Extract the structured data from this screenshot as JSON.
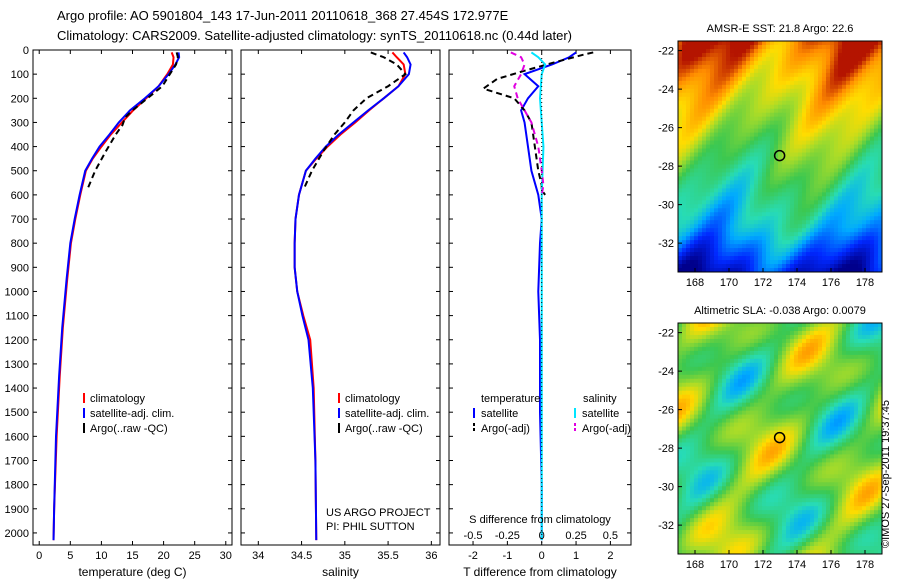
{
  "title_line1": "Argo profile: AO 5901804_143 17-Jun-2011 20110618_368 27.454S 172.977E",
  "title_line2": "Climatology: CARS2009. Satellite-adjusted climatology: synTS_20110618.nc (0.44d later)",
  "stamp": "©IMOS 27-Sep-2011 19:37:45",
  "colors": {
    "climatology": "#ff0000",
    "satellite": "#0000ff",
    "argo": "#000000",
    "satellite_salinity": "#00e5ff",
    "argo_salinity": "#e000e0"
  },
  "chart_data": [
    {
      "type": "line",
      "id": "temperature",
      "xlabel": "temperature (deg C)",
      "xlim": [
        -1,
        31
      ],
      "xticks": [
        0,
        5,
        10,
        15,
        20,
        25,
        30
      ],
      "ylim": [
        2050,
        0
      ],
      "yticks": [
        0,
        100,
        200,
        300,
        400,
        500,
        600,
        700,
        800,
        900,
        1000,
        1100,
        1200,
        1300,
        1400,
        1500,
        1600,
        1700,
        1800,
        1900,
        2000
      ],
      "legend": [
        "climatology",
        "satellite-adj. clim.",
        "Argo(..raw -QC)"
      ],
      "series": [
        {
          "name": "climatology",
          "color": "#ff0000",
          "x": [
            21.3,
            21.6,
            21.5,
            20.6,
            19.2,
            17.2,
            15.1,
            13.3,
            11.5,
            10.0,
            8.6,
            7.5,
            6.6,
            5.8,
            5.1,
            4.5,
            3.8,
            3.3,
            2.8,
            2.4,
            2.3
          ],
          "y": [
            10,
            30,
            60,
            100,
            150,
            200,
            250,
            300,
            350,
            400,
            450,
            500,
            600,
            700,
            800,
            950,
            1150,
            1350,
            1600,
            1900,
            2030
          ]
        },
        {
          "name": "satellite-adj. clim.",
          "color": "#0000ff",
          "x": [
            22.4,
            22.5,
            21.9,
            20.8,
            19.2,
            17.0,
            14.6,
            12.8,
            11.3,
            9.7,
            8.5,
            7.4,
            6.5,
            5.7,
            5.0,
            4.4,
            3.7,
            3.2,
            2.7,
            2.4,
            2.3
          ],
          "y": [
            10,
            30,
            60,
            100,
            150,
            200,
            250,
            300,
            350,
            400,
            450,
            500,
            600,
            700,
            800,
            950,
            1150,
            1350,
            1600,
            1900,
            2030
          ]
        },
        {
          "name": "Argo(..raw -QC)",
          "color": "#000000",
          "dashed": true,
          "x": [
            22.1,
            22.3,
            22.0,
            21.0,
            19.8,
            17.4,
            15.0,
            13.8,
            13.4,
            12.3,
            10.7,
            9.0,
            7.7
          ],
          "y": [
            10,
            30,
            60,
            100,
            150,
            200,
            250,
            280,
            310,
            350,
            420,
            500,
            580
          ]
        }
      ]
    },
    {
      "type": "line",
      "id": "salinity",
      "xlabel": "salinity",
      "xlim": [
        33.8,
        36.1
      ],
      "xticks": [
        34,
        34.5,
        35,
        35.5,
        36
      ],
      "ylim": [
        2050,
        0
      ],
      "legend": [
        "climatology",
        "satellite-adj. clim.",
        "Argo(..raw -QC)"
      ],
      "annotation": [
        "US ARGO PROJECT",
        "PI: PHIL SUTTON"
      ],
      "series": [
        {
          "name": "climatology",
          "color": "#ff0000",
          "x": [
            35.55,
            35.6,
            35.68,
            35.7,
            35.62,
            35.45,
            35.28,
            35.12,
            34.95,
            34.8,
            34.67,
            34.55,
            34.47,
            34.43,
            34.42,
            34.42,
            34.45,
            34.52,
            34.6,
            34.64,
            34.66,
            34.67
          ],
          "y": [
            10,
            30,
            60,
            100,
            150,
            200,
            250,
            300,
            350,
            400,
            450,
            500,
            600,
            700,
            800,
            900,
            1000,
            1100,
            1200,
            1400,
            1700,
            2030
          ]
        },
        {
          "name": "satellite-adj. clim.",
          "color": "#0000ff",
          "x": [
            35.68,
            35.72,
            35.76,
            35.74,
            35.62,
            35.45,
            35.27,
            35.1,
            34.93,
            34.78,
            34.66,
            34.55,
            34.47,
            34.43,
            34.42,
            34.42,
            34.45,
            34.51,
            34.58,
            34.63,
            34.66,
            34.67
          ],
          "y": [
            10,
            30,
            60,
            100,
            150,
            200,
            250,
            300,
            350,
            400,
            450,
            500,
            600,
            700,
            800,
            900,
            1000,
            1100,
            1200,
            1400,
            1700,
            2030
          ]
        },
        {
          "name": "Argo(..raw -QC)",
          "color": "#000000",
          "dashed": true,
          "x": [
            35.3,
            35.45,
            35.6,
            35.7,
            35.5,
            35.25,
            35.1,
            35.0,
            34.88,
            34.75,
            34.62,
            34.52
          ],
          "y": [
            10,
            30,
            60,
            100,
            150,
            200,
            250,
            300,
            350,
            420,
            500,
            580
          ]
        }
      ]
    },
    {
      "type": "line",
      "id": "difference",
      "xlabel": "T difference from climatology",
      "xlabel_top": "S difference from climatology",
      "xlim": [
        -2.7,
        2.6
      ],
      "xticks": [
        -2,
        -1,
        0,
        1,
        2
      ],
      "xticks_salinity": [
        "-0.5",
        "-0.25",
        "0",
        "0.25",
        "0.5"
      ],
      "ylim": [
        2050,
        0
      ],
      "legend_temperature": [
        "temperature",
        "satellite",
        "Argo(-adj)"
      ],
      "legend_salinity": [
        "salinity",
        "satellite",
        "Argo(-adj)"
      ],
      "series": [
        {
          "name": "satellite",
          "variable": "temperature",
          "color": "#0000ff",
          "x": [
            1.0,
            0.8,
            0.3,
            -0.5,
            -0.1,
            -0.4,
            -0.6,
            -0.5,
            -0.4,
            -0.3,
            -0.2,
            -0.1,
            0.0,
            -0.05,
            -0.1,
            -0.05,
            -0.05,
            0.0,
            0.0
          ],
          "y": [
            10,
            30,
            60,
            100,
            150,
            200,
            250,
            300,
            400,
            500,
            550,
            600,
            700,
            800,
            1000,
            1200,
            1500,
            1800,
            2030
          ]
        },
        {
          "name": "Argo(-adj)",
          "variable": "temperature",
          "color": "#000000",
          "dashed": true,
          "x": [
            1.5,
            1.2,
            0.4,
            -0.6,
            -1.3,
            -1.7,
            -0.8,
            -0.5,
            -0.3,
            -0.2,
            -0.1,
            0.0,
            0.0,
            0.1
          ],
          "y": [
            10,
            20,
            50,
            90,
            120,
            160,
            200,
            250,
            300,
            400,
            500,
            560,
            580,
            600
          ]
        },
        {
          "name": "satellite",
          "variable": "salinity",
          "color": "#00e5ff",
          "x": [
            -0.3,
            -0.1,
            0.1,
            0.0,
            -0.05,
            0.0,
            0.05,
            0.0,
            0.0,
            0.0,
            0.0
          ],
          "y": [
            10,
            30,
            60,
            100,
            200,
            300,
            400,
            600,
            1000,
            1500,
            2030
          ]
        },
        {
          "name": "Argo(-adj)",
          "variable": "salinity",
          "color": "#e000e0",
          "dashed": true,
          "x": [
            -0.9,
            -0.6,
            -0.5,
            -0.6,
            -0.8,
            -0.7,
            -0.5,
            -0.3,
            -0.1,
            0.0,
            0.05,
            0.0
          ],
          "y": [
            10,
            30,
            60,
            100,
            150,
            200,
            250,
            300,
            400,
            500,
            560,
            600
          ]
        }
      ]
    },
    {
      "type": "heatmap",
      "id": "sst_map",
      "title": "AMSR-E SST: 21.8 Argo: 22.6",
      "xticks": [
        168,
        170,
        172,
        174,
        176,
        178
      ],
      "yticks": [
        -22,
        -24,
        -26,
        -28,
        -30,
        -32
      ],
      "xlim": [
        167,
        179
      ],
      "ylim": [
        -33.5,
        -21.5
      ],
      "marker": {
        "lon": 172.977,
        "lat": -27.454
      }
    },
    {
      "type": "heatmap",
      "id": "sla_map",
      "title": "Altimetric SLA: -0.038 Argo: 0.0079",
      "xticks": [
        168,
        170,
        172,
        174,
        176,
        178
      ],
      "yticks": [
        -22,
        -24,
        -26,
        -28,
        -30,
        -32
      ],
      "xlim": [
        167,
        179
      ],
      "ylim": [
        -33.5,
        -21.5
      ],
      "marker": {
        "lon": 172.977,
        "lat": -27.454
      }
    }
  ]
}
